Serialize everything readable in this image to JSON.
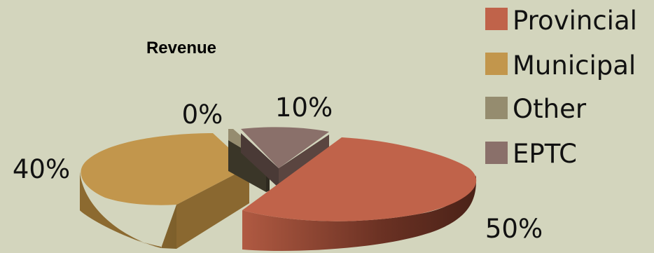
{
  "chart_data": {
    "type": "pie",
    "title": "Revenue",
    "slices": [
      {
        "label": "Provincial",
        "value": 50,
        "display": "50%",
        "color": "#c0634a"
      },
      {
        "label": "Municipal",
        "value": 40,
        "display": "40%",
        "color": "#c2964c"
      },
      {
        "label": "Other",
        "value": 0,
        "display": "0%",
        "color": "#958c6f"
      },
      {
        "label": "EPTC",
        "value": 10,
        "display": "10%",
        "color": "#8a706a"
      }
    ],
    "legend_position": "top-right",
    "style": "3d exploded"
  }
}
